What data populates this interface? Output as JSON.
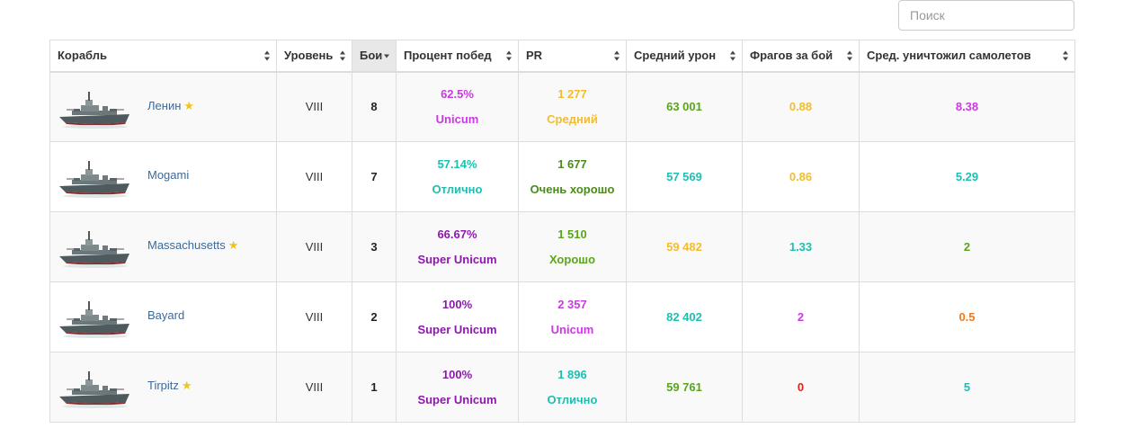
{
  "search": {
    "placeholder": "Поиск"
  },
  "colors": {
    "unicum": "#c93ae0",
    "super_unicum": "#8b1aaa",
    "great": "#1cbfb0",
    "good": "#5aa51c",
    "very_good": "#4b8a1c",
    "average": "#f3bc2b",
    "below_average": "#ef7a1f",
    "bad": "#e32020",
    "link": "#3a6a9c"
  },
  "table": {
    "headers": [
      {
        "key": "ship",
        "label": "Корабль"
      },
      {
        "key": "level",
        "label": "Уровень"
      },
      {
        "key": "battles",
        "label": "Бои",
        "sorted": "desc"
      },
      {
        "key": "winrate",
        "label": "Процент побед"
      },
      {
        "key": "pr",
        "label": "PR"
      },
      {
        "key": "avg_damage",
        "label": "Средний урон"
      },
      {
        "key": "frags",
        "label": "Фрагов за бой"
      },
      {
        "key": "planes",
        "label": "Сред. уничтожил самолетов"
      }
    ],
    "rows": [
      {
        "ship": "Ленин",
        "star": true,
        "level": "VIII",
        "battles": "8",
        "winrate": "62.5%",
        "winrate_rating": "Unicum",
        "winrate_color": "#c93ae0",
        "pr": "1 277",
        "pr_rating": "Средний",
        "pr_color": "#f3bc2b",
        "avg_damage": "63 001",
        "avg_damage_color": "#5aa51c",
        "frags": "0.88",
        "frags_color": "#f3bc2b",
        "planes": "8.38",
        "planes_color": "#c93ae0"
      },
      {
        "ship": "Mogami",
        "star": false,
        "level": "VIII",
        "battles": "7",
        "winrate": "57.14%",
        "winrate_rating": "Отлично",
        "winrate_color": "#1cbfb0",
        "pr": "1 677",
        "pr_rating": "Очень хорошо",
        "pr_color": "#4b8a1c",
        "avg_damage": "57 569",
        "avg_damage_color": "#1cbfb0",
        "frags": "0.86",
        "frags_color": "#f3bc2b",
        "planes": "5.29",
        "planes_color": "#1cbfb0"
      },
      {
        "ship": "Massachusetts",
        "star": true,
        "level": "VIII",
        "battles": "3",
        "winrate": "66.67%",
        "winrate_rating": "Super Unicum",
        "winrate_color": "#8b1aaa",
        "pr": "1 510",
        "pr_rating": "Хорошо",
        "pr_color": "#5aa51c",
        "avg_damage": "59 482",
        "avg_damage_color": "#f3bc2b",
        "frags": "1.33",
        "frags_color": "#1cbfb0",
        "planes": "2",
        "planes_color": "#5aa51c"
      },
      {
        "ship": "Bayard",
        "star": false,
        "level": "VIII",
        "battles": "2",
        "winrate": "100%",
        "winrate_rating": "Super Unicum",
        "winrate_color": "#8b1aaa",
        "pr": "2 357",
        "pr_rating": "Unicum",
        "pr_color": "#c93ae0",
        "avg_damage": "82 402",
        "avg_damage_color": "#1cbfb0",
        "frags": "2",
        "frags_color": "#c93ae0",
        "planes": "0.5",
        "planes_color": "#ef7a1f"
      },
      {
        "ship": "Tirpitz",
        "star": true,
        "level": "VIII",
        "battles": "1",
        "winrate": "100%",
        "winrate_rating": "Super Unicum",
        "winrate_color": "#8b1aaa",
        "pr": "1 896",
        "pr_rating": "Отлично",
        "pr_color": "#1cbfb0",
        "avg_damage": "59 761",
        "avg_damage_color": "#5aa51c",
        "frags": "0",
        "frags_color": "#e32020",
        "planes": "5",
        "planes_color": "#1cbfb0"
      }
    ]
  },
  "icons": {
    "ship": "warship-icon",
    "star": "star-icon",
    "sort": "sort-icon"
  }
}
